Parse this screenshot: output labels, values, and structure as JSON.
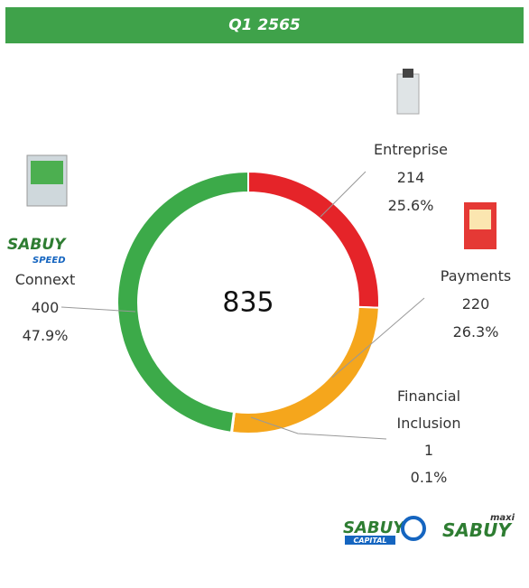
{
  "chart_data": {
    "type": "donut",
    "title": "Q1 2565",
    "total": 835,
    "categories": [
      "Entreprise",
      "Payments",
      "Financial Inclusion",
      "Connext"
    ],
    "values": [
      214,
      220,
      1,
      400
    ],
    "percent_labels": [
      "25.6%",
      "26.3%",
      "0.1%",
      "47.9%"
    ],
    "colors": [
      "#e52429",
      "#f5a61c",
      "#f5a61c",
      "#3caa49"
    ],
    "logos": {
      "speed": [
        "SABUY",
        "SPEED"
      ],
      "capital": [
        "SABUY",
        "CAPITAL"
      ],
      "maxi": [
        "SABUY",
        "maxi"
      ]
    }
  }
}
